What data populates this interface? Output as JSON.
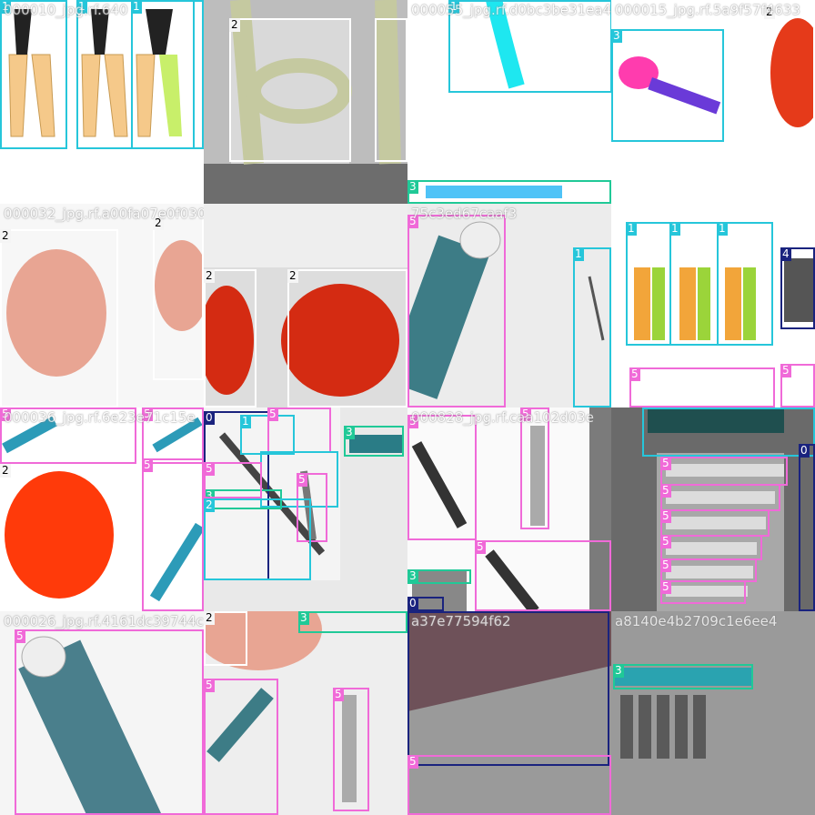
{
  "tiles": [
    {
      "fname": "000010_jpg.rf.640",
      "bg": "#ffffff"
    },
    {
      "fname": "",
      "bg": "#6d6d6d"
    },
    {
      "fname": "000055_jpg.rf.d0bc3be31ea4e",
      "bg": "#ffffff"
    },
    {
      "fname": "000015_jpg.rf.5a9f57f4633",
      "bg": "#ffffff"
    },
    {
      "fname": "000032_jpg.rf.a00fa07e0f030",
      "bg": "#f7f7f7"
    },
    {
      "fname": "",
      "bg": "#dddddd"
    },
    {
      "fname": "75c3ed67caaf3",
      "bg": "#ececec"
    },
    {
      "fname": "",
      "bg": "#ffffff"
    },
    {
      "fname": "000036_jpg.rf.6e23e71c15e",
      "bg": "#ffffff"
    },
    {
      "fname": "",
      "bg": "#e9e9e9"
    },
    {
      "fname": "000828_jpg.rf.caa102d03e",
      "bg": "#ffffff"
    },
    {
      "fname": "",
      "bg": "#6a6a6a"
    },
    {
      "fname": "000026_jpg.rf.4161dc39744c",
      "bg": "#f5f5f5"
    },
    {
      "fname": "",
      "bg": "#eeeeee"
    },
    {
      "fname": "a37e77594f62",
      "bg": "#8a8a8a"
    },
    {
      "fname": "a8140e4b2709c1e6ee4",
      "bg": "#8d8d8d"
    }
  ],
  "labels": [
    "0",
    "1",
    "2",
    "3",
    "4",
    "5"
  ],
  "colors": {
    "class0": "#1a237e",
    "class1": "#26c6da",
    "class2": "#ffffff",
    "class3": "#20c997",
    "class4": "#1a237e",
    "class5": "#f06ad8"
  }
}
